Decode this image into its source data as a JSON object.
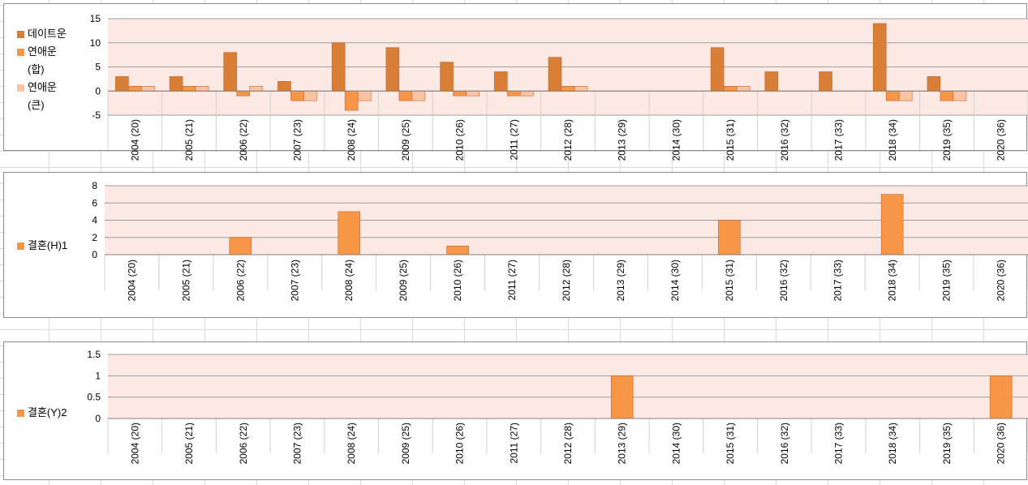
{
  "categories": [
    "2004 (20)",
    "2005 (21)",
    "2006 (22)",
    "2007 (23)",
    "2008 (24)",
    "2009 (25)",
    "2010 (26)",
    "2011 (27)",
    "2012 (28)",
    "2013 (29)",
    "2014 (30)",
    "2015 (31)",
    "2016 (32)",
    "2017 (33)",
    "2018 (34)",
    "2019 (35)",
    "2020 (36)"
  ],
  "colors": {
    "plot_bg": "#fde9e4",
    "grid": "#9c9c9c",
    "series_dark": "#d87e36",
    "series_mid": "#f79646",
    "series_light": "#fac3a3"
  },
  "chart_data": [
    {
      "type": "bar",
      "categories": [
        "2004 (20)",
        "2005 (21)",
        "2006 (22)",
        "2007 (23)",
        "2008 (24)",
        "2009 (25)",
        "2010 (26)",
        "2011 (27)",
        "2012 (28)",
        "2013 (29)",
        "2014 (30)",
        "2015 (31)",
        "2016 (32)",
        "2017 (33)",
        "2018 (34)",
        "2019 (35)",
        "2020 (36)"
      ],
      "ylim": [
        -5,
        15
      ],
      "yticks": [
        15,
        10,
        5,
        0,
        -5
      ],
      "legend_position": "left",
      "series": [
        {
          "name": "데이트운",
          "color": "#d87e36",
          "values": [
            3,
            3,
            8,
            2,
            10,
            9,
            6,
            4,
            7,
            0,
            0,
            9,
            4,
            4,
            14,
            3,
            0
          ]
        },
        {
          "name": "연애운(합)",
          "color": "#f79646",
          "values": [
            1,
            1,
            -1,
            -2,
            -4,
            -2,
            -1,
            -1,
            1,
            0,
            0,
            1,
            0,
            0,
            -2,
            -2,
            0
          ]
        },
        {
          "name": "연애운(큰)",
          "color": "#fac3a3",
          "values": [
            1,
            1,
            1,
            -2,
            -2,
            -2,
            -1,
            -1,
            1,
            0,
            0,
            1,
            0,
            0,
            -2,
            -2,
            0
          ]
        }
      ]
    },
    {
      "type": "bar",
      "categories": [
        "2004 (20)",
        "2005 (21)",
        "2006 (22)",
        "2007 (23)",
        "2008 (24)",
        "2009 (25)",
        "2010 (26)",
        "2011 (27)",
        "2012 (28)",
        "2013 (29)",
        "2014 (30)",
        "2015 (31)",
        "2016 (32)",
        "2017 (33)",
        "2018 (34)",
        "2019 (35)",
        "2020 (36)"
      ],
      "ylim": [
        0,
        8
      ],
      "yticks": [
        8,
        6,
        4,
        2,
        0
      ],
      "legend_position": "left",
      "series": [
        {
          "name": "결혼(H)1",
          "color": "#f79646",
          "values": [
            0,
            0,
            2,
            0,
            5,
            0,
            1,
            0,
            0,
            0,
            0,
            4,
            0,
            0,
            7,
            0,
            0
          ]
        }
      ]
    },
    {
      "type": "bar",
      "categories": [
        "2004 (20)",
        "2005 (21)",
        "2006 (22)",
        "2007 (23)",
        "2008 (24)",
        "2009 (25)",
        "2010 (26)",
        "2011 (27)",
        "2012 (28)",
        "2013 (29)",
        "2014 (30)",
        "2015 (31)",
        "2016 (32)",
        "2017 (33)",
        "2018 (34)",
        "2019 (35)",
        "2020 (36)"
      ],
      "ylim": [
        0,
        1.5
      ],
      "yticks": [
        1.5,
        1,
        0.5,
        0
      ],
      "legend_position": "left",
      "series": [
        {
          "name": "결혼(Y)2",
          "color": "#f79646",
          "values": [
            0,
            0,
            0,
            0,
            0,
            0,
            0,
            0,
            0,
            1,
            0,
            0,
            0,
            0,
            0,
            0,
            1
          ]
        }
      ]
    }
  ]
}
